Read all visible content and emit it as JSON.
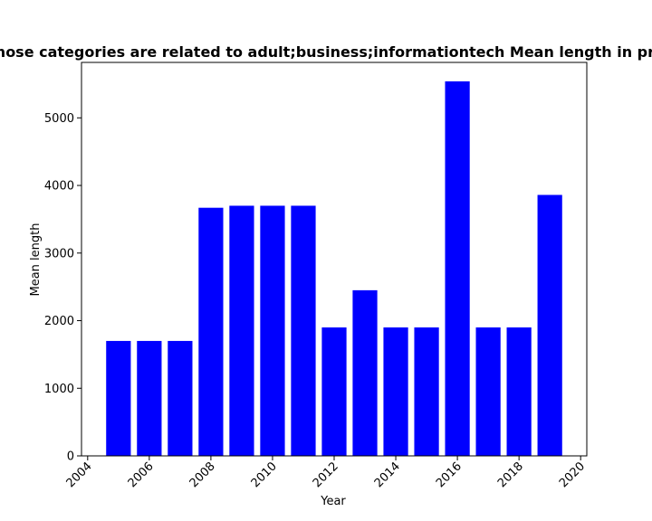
{
  "chart_data": {
    "type": "bar",
    "title": "Websites whose categories are related to adult;business;informationtech Mean length in privacy policies",
    "xlabel": "Year",
    "ylabel": "Mean length",
    "x": [
      2005,
      2006,
      2007,
      2008,
      2009,
      2010,
      2011,
      2012,
      2013,
      2014,
      2015,
      2016,
      2017,
      2018,
      2019
    ],
    "values": [
      1700,
      1700,
      1700,
      3670,
      3700,
      3700,
      3700,
      1900,
      2450,
      1900,
      1900,
      5540,
      1900,
      1900,
      3860
    ],
    "xlim": [
      2003.8,
      2020.2
    ],
    "ylim": [
      0,
      5820
    ],
    "xticks": [
      2004,
      2006,
      2008,
      2010,
      2012,
      2014,
      2016,
      2018,
      2020
    ],
    "yticks": [
      0,
      1000,
      2000,
      3000,
      4000,
      5000
    ],
    "bar_color": "#0000ff",
    "grid": false,
    "legend": "none"
  }
}
